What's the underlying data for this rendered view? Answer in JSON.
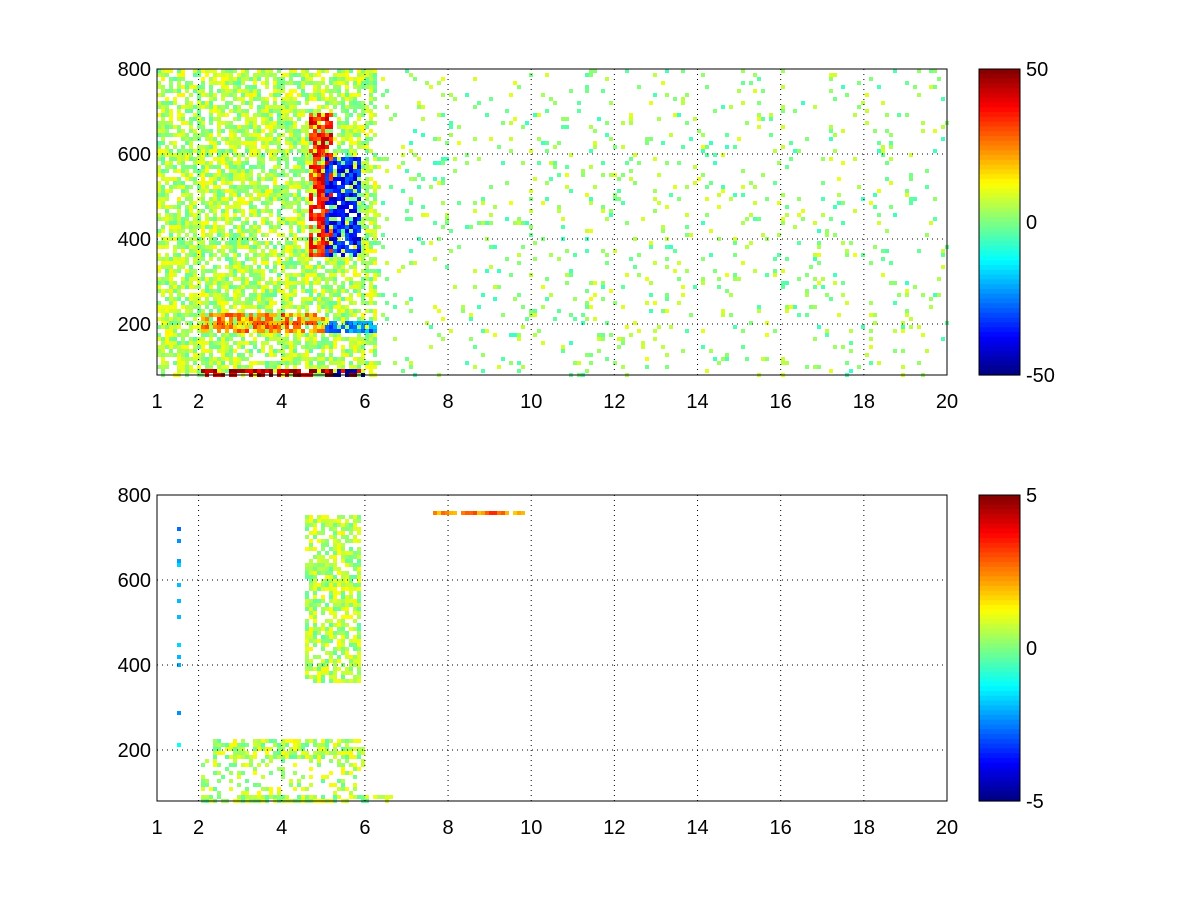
{
  "chart_data": [
    {
      "type": "heatmap",
      "title": "",
      "xlabel": "",
      "ylabel": "",
      "xlim": [
        1,
        20
      ],
      "ylim": [
        80,
        800
      ],
      "xticks": [
        1,
        2,
        4,
        6,
        8,
        10,
        12,
        14,
        16,
        18,
        20
      ],
      "yticks": [
        200,
        400,
        600,
        800
      ],
      "grid": true,
      "colormap": "jet",
      "colorbar": {
        "range": [
          -50,
          50
        ],
        "ticks": [
          50,
          0,
          -50
        ]
      },
      "features": [
        {
          "name": "dense_broadband_region",
          "x_range": [
            1,
            6.2
          ],
          "y_range": [
            80,
            800
          ],
          "typical_value": 5
        },
        {
          "name": "low_band_strong_positive",
          "x_range": [
            2,
            6
          ],
          "y_range": [
            80,
            100
          ],
          "typical_value": 45
        },
        {
          "name": "low_band_negative",
          "x_range": [
            5.2,
            6
          ],
          "y_range": [
            80,
            100
          ],
          "typical_value": -45
        },
        {
          "name": "band_200_positive",
          "x_range": [
            2,
            5
          ],
          "y_range": [
            180,
            230
          ],
          "typical_value": 25
        },
        {
          "name": "band_200_negative",
          "x_range": [
            5,
            6.2
          ],
          "y_range": [
            180,
            210
          ],
          "typical_value": -25
        },
        {
          "name": "red_curved_streak",
          "x_range": [
            4.6,
            5.2
          ],
          "y_range": [
            360,
            700
          ],
          "typical_value": 35
        },
        {
          "name": "blue_curved_streak",
          "x_range": [
            5.0,
            5.9
          ],
          "y_range": [
            360,
            600
          ],
          "typical_value": -35
        },
        {
          "name": "sparse_scatter_region",
          "x_range": [
            6.2,
            20
          ],
          "y_range": [
            80,
            800
          ],
          "typical_value": 2
        }
      ]
    },
    {
      "type": "heatmap",
      "title": "",
      "xlabel": "",
      "ylabel": "",
      "xlim": [
        1,
        20
      ],
      "ylim": [
        80,
        800
      ],
      "xticks": [
        1,
        2,
        4,
        6,
        8,
        10,
        12,
        14,
        16,
        18,
        20
      ],
      "yticks": [
        200,
        400,
        600,
        800
      ],
      "grid": true,
      "colormap": "jet",
      "colorbar": {
        "range": [
          -5,
          5
        ],
        "ticks": [
          5,
          0,
          -5
        ]
      },
      "features": [
        {
          "name": "low_band_green",
          "x_range": [
            2,
            6.6
          ],
          "y_range": [
            80,
            100
          ],
          "typical_value": 0.5
        },
        {
          "name": "band_200_green",
          "x_range": [
            2.3,
            6
          ],
          "y_range": [
            180,
            230
          ],
          "typical_value": 0.5
        },
        {
          "name": "scattered_low_green",
          "x_range": [
            2,
            6
          ],
          "y_range": [
            100,
            180
          ],
          "typical_value": 0.5
        },
        {
          "name": "curved_streak_green",
          "x_range": [
            4.5,
            5.9
          ],
          "y_range": [
            360,
            760
          ],
          "typical_value": 0.5
        },
        {
          "name": "left_edge_column",
          "x_range": [
            1.4,
            1.5
          ],
          "y_range": [
            180,
            780
          ],
          "typical_value": -2
        },
        {
          "name": "isolated_orange_points",
          "x_range": [
            7.6,
            9.8
          ],
          "y_range": [
            760,
            770
          ],
          "typical_value": 2.5
        }
      ]
    }
  ]
}
